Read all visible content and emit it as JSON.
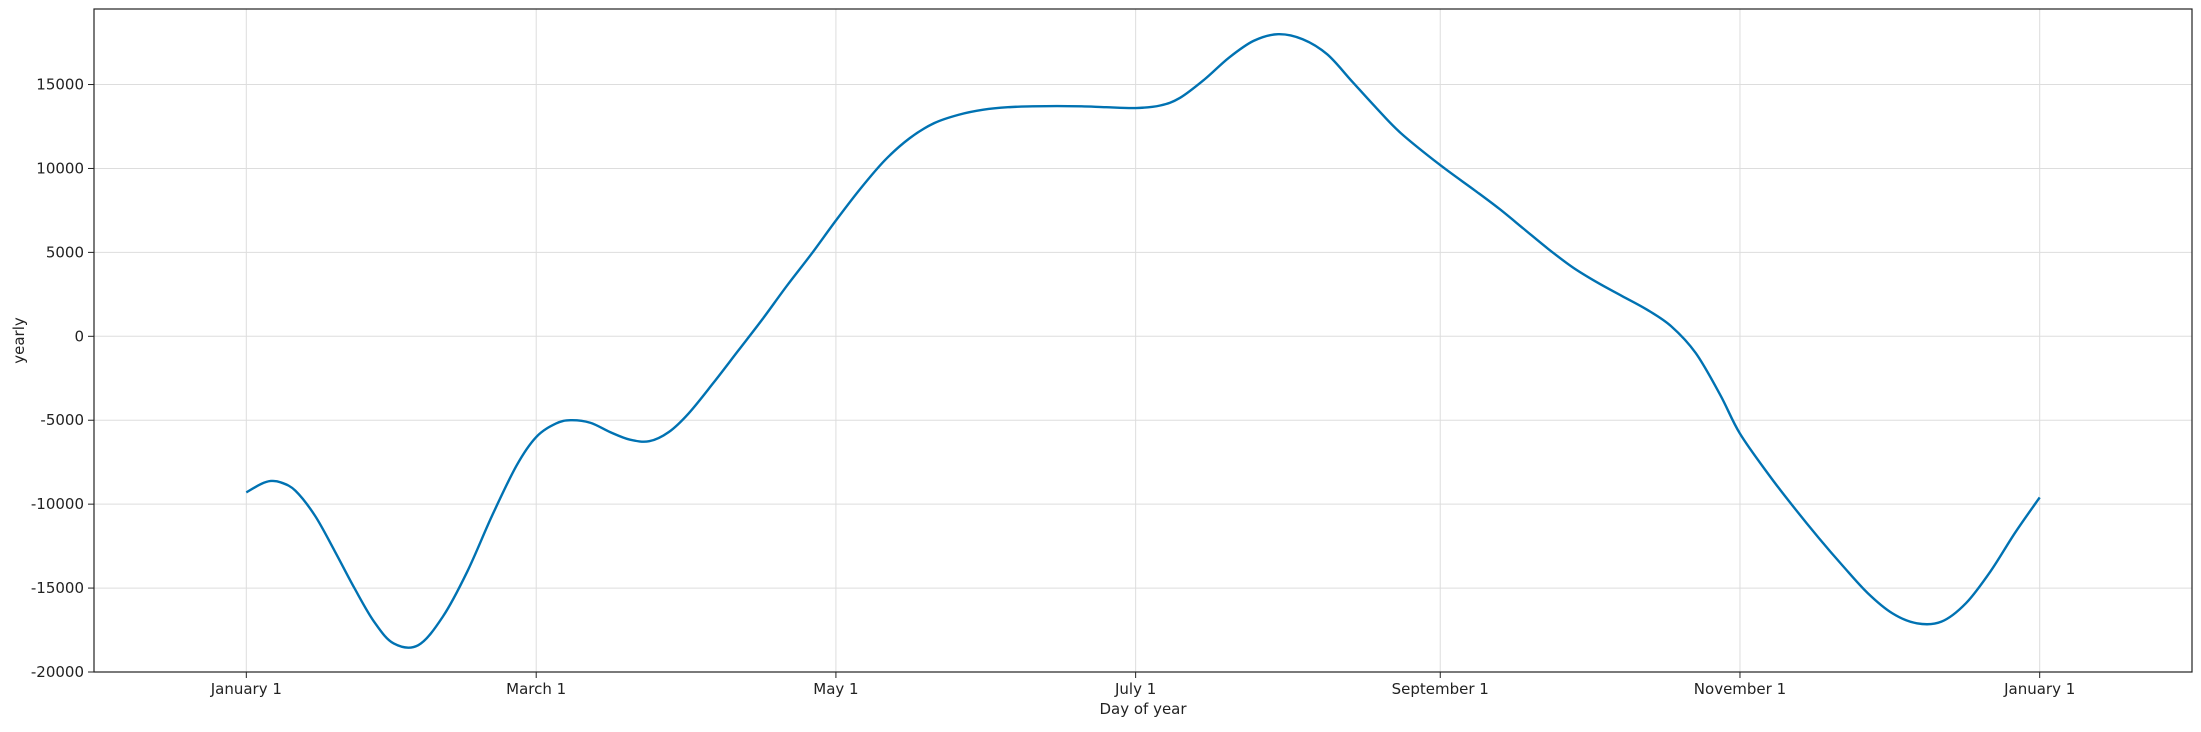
{
  "chart_data": {
    "type": "line",
    "title": "",
    "xlabel": "Day of year",
    "ylabel": "yearly",
    "grid": true,
    "xlim": [
      -31,
      396
    ],
    "ylim": [
      -20000,
      19500
    ],
    "x_ticks": [
      {
        "day": 0,
        "label": "January 1"
      },
      {
        "day": 59,
        "label": "March 1"
      },
      {
        "day": 120,
        "label": "May 1"
      },
      {
        "day": 181,
        "label": "July 1"
      },
      {
        "day": 243,
        "label": "September 1"
      },
      {
        "day": 304,
        "label": "November 1"
      },
      {
        "day": 365,
        "label": "January 1"
      }
    ],
    "y_ticks": [
      {
        "value": 15000,
        "label": "15000"
      },
      {
        "value": 10000,
        "label": "10000"
      },
      {
        "value": 5000,
        "label": "5000"
      },
      {
        "value": 0,
        "label": "0"
      },
      {
        "value": -5000,
        "label": "-5000"
      },
      {
        "value": -10000,
        "label": "-10000"
      },
      {
        "value": -15000,
        "label": "-15000"
      },
      {
        "value": -20000,
        "label": "-20000"
      }
    ],
    "series": [
      {
        "color": "#0072B2",
        "x": [
          0,
          3,
          5,
          7,
          10,
          14,
          18,
          22,
          26,
          30,
          35,
          40,
          45,
          50,
          55,
          59,
          63,
          66,
          70,
          74,
          78,
          82,
          86,
          90,
          95,
          100,
          105,
          110,
          115,
          120,
          125,
          130,
          135,
          140,
          145,
          150,
          155,
          160,
          165,
          170,
          175,
          181,
          186,
          190,
          195,
          200,
          205,
          210,
          215,
          220,
          225,
          230,
          235,
          243,
          250,
          255,
          260,
          265,
          270,
          275,
          280,
          285,
          290,
          295,
          300,
          304,
          310,
          315,
          320,
          325,
          330,
          335,
          340,
          345,
          350,
          355,
          360,
          365
        ],
        "y": [
          -9300,
          -8800,
          -8620,
          -8700,
          -9200,
          -10700,
          -12800,
          -15000,
          -17000,
          -18300,
          -18400,
          -16700,
          -14000,
          -10700,
          -7700,
          -6000,
          -5200,
          -5000,
          -5150,
          -5700,
          -6150,
          -6250,
          -5700,
          -4600,
          -2800,
          -900,
          1000,
          3000,
          4900,
          6900,
          8800,
          10500,
          11800,
          12700,
          13200,
          13500,
          13650,
          13700,
          13720,
          13700,
          13650,
          13600,
          13750,
          14200,
          15300,
          16600,
          17600,
          18000,
          17700,
          16800,
          15200,
          13600,
          12100,
          10200,
          8700,
          7600,
          6400,
          5200,
          4100,
          3200,
          2400,
          1600,
          600,
          -1000,
          -3500,
          -5800,
          -8300,
          -10200,
          -12000,
          -13700,
          -15300,
          -16500,
          -17100,
          -17000,
          -15900,
          -14000,
          -11700,
          -9600
        ]
      }
    ]
  }
}
